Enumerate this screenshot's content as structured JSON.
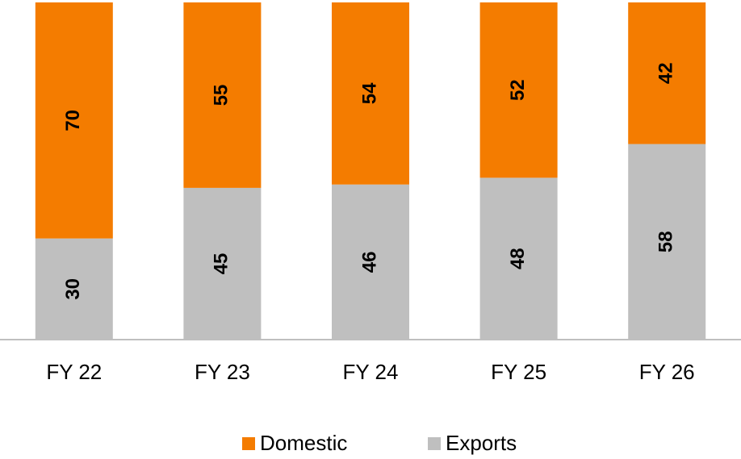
{
  "chart_data": {
    "type": "stacked_bar",
    "categories": [
      "FY 22",
      "FY 23",
      "FY 24",
      "FY 25",
      "FY 26"
    ],
    "series": [
      {
        "name": "Domestic",
        "color": "#f47c00",
        "values": [
          70,
          55,
          54,
          52,
          42
        ]
      },
      {
        "name": "Exports",
        "color": "#bfbfbf",
        "values": [
          30,
          45,
          46,
          48,
          58
        ]
      }
    ],
    "ylim": [
      0,
      100
    ],
    "legend": "bottom"
  }
}
